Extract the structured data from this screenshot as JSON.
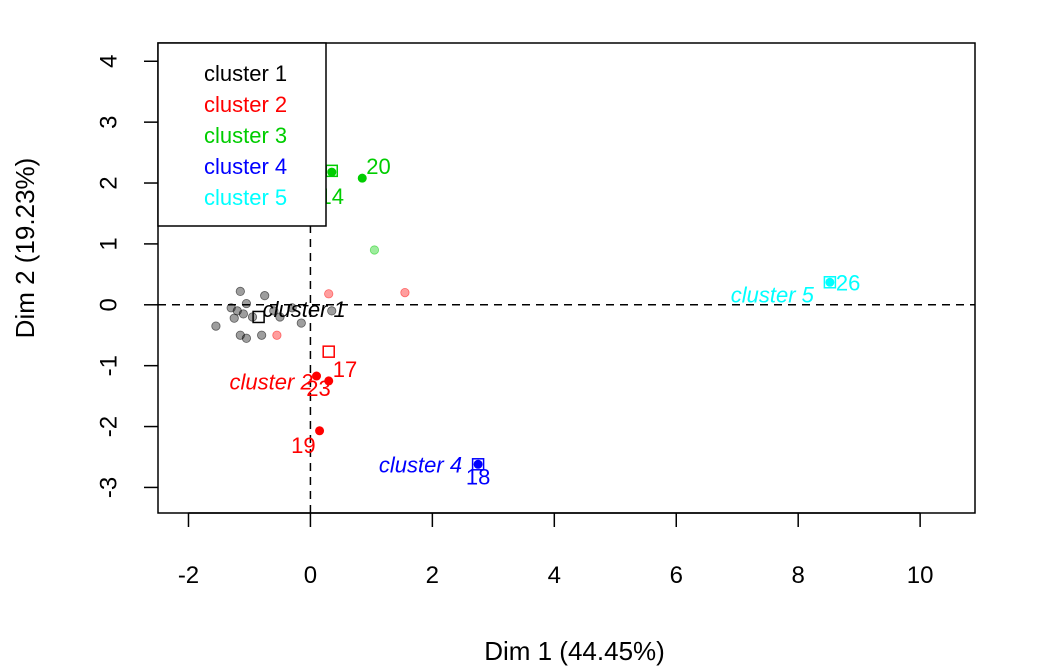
{
  "chart_data": {
    "type": "scatter",
    "xlabel": "Dim 1 (44.45%)",
    "ylabel": "Dim 2 (19.23%)",
    "xlim": [
      -2.5,
      10.9
    ],
    "ylim": [
      -3.42,
      4.3
    ],
    "xticks": [
      -2,
      0,
      2,
      4,
      6,
      8,
      10
    ],
    "yticks": [
      -3,
      -2,
      -1,
      0,
      1,
      2,
      3,
      4
    ],
    "reference_lines": {
      "x": 0,
      "y": 0,
      "style": "dashed"
    },
    "legend": {
      "placement": "top-left",
      "entries": [
        {
          "label": "cluster 1",
          "color": "#000000"
        },
        {
          "label": "cluster 2",
          "color": "#FF0000"
        },
        {
          "label": "cluster 3",
          "color": "#00CD00"
        },
        {
          "label": "cluster 4",
          "color": "#0000FF"
        },
        {
          "label": "cluster 5",
          "color": "#00FFFF"
        }
      ]
    },
    "series": [
      {
        "cluster": 1,
        "color": "#000000",
        "faded_points": [
          {
            "x": -1.55,
            "y": -0.35
          },
          {
            "x": -1.3,
            "y": -0.05
          },
          {
            "x": -1.25,
            "y": -0.22
          },
          {
            "x": -1.2,
            "y": -0.1
          },
          {
            "x": -1.15,
            "y": -0.5
          },
          {
            "x": -1.15,
            "y": 0.22
          },
          {
            "x": -1.1,
            "y": -0.15
          },
          {
            "x": -1.05,
            "y": 0.02
          },
          {
            "x": -1.05,
            "y": -0.55
          },
          {
            "x": -0.95,
            "y": -0.2
          },
          {
            "x": -0.8,
            "y": -0.5
          },
          {
            "x": -0.75,
            "y": 0.15
          },
          {
            "x": -0.6,
            "y": -0.1
          },
          {
            "x": -0.5,
            "y": -0.2
          },
          {
            "x": -0.3,
            "y": -0.05
          },
          {
            "x": -0.15,
            "y": -0.3
          },
          {
            "x": 0.35,
            "y": -0.1
          }
        ],
        "center": {
          "x": -0.85,
          "y": -0.2
        },
        "center_label": "cluster 1"
      },
      {
        "cluster": 2,
        "color": "#FF0000",
        "faded_points": [
          {
            "x": 0.3,
            "y": 0.18
          },
          {
            "x": 1.55,
            "y": 0.2
          },
          {
            "x": -0.55,
            "y": -0.5
          }
        ],
        "points": [
          {
            "x": 0.3,
            "y": -1.25,
            "label": "17"
          },
          {
            "x": 0.1,
            "y": -1.17,
            "label": "23"
          },
          {
            "x": 0.15,
            "y": -2.07,
            "label": "19"
          }
        ],
        "center": {
          "x": 0.3,
          "y": -0.77
        },
        "center_label": "cluster 2"
      },
      {
        "cluster": 3,
        "color": "#00CD00",
        "faded_points": [
          {
            "x": 1.05,
            "y": 0.9
          }
        ],
        "points": [
          {
            "x": 0.85,
            "y": 2.08,
            "label": "20"
          },
          {
            "x": 0.35,
            "y": 2.18,
            "label": "14"
          }
        ],
        "center": {
          "x": 0.35,
          "y": 2.2
        },
        "center_label": "cluster 3"
      },
      {
        "cluster": 4,
        "color": "#0000FF",
        "points": [
          {
            "x": 2.75,
            "y": -2.62,
            "label": "18"
          }
        ],
        "center": {
          "x": 2.75,
          "y": -2.62
        },
        "center_label": "cluster 4"
      },
      {
        "cluster": 5,
        "color": "#00FFFF",
        "points": [
          {
            "x": 8.52,
            "y": 0.37,
            "label": "26"
          }
        ],
        "center": {
          "x": 8.52,
          "y": 0.37
        },
        "center_label": "cluster 5"
      }
    ]
  }
}
